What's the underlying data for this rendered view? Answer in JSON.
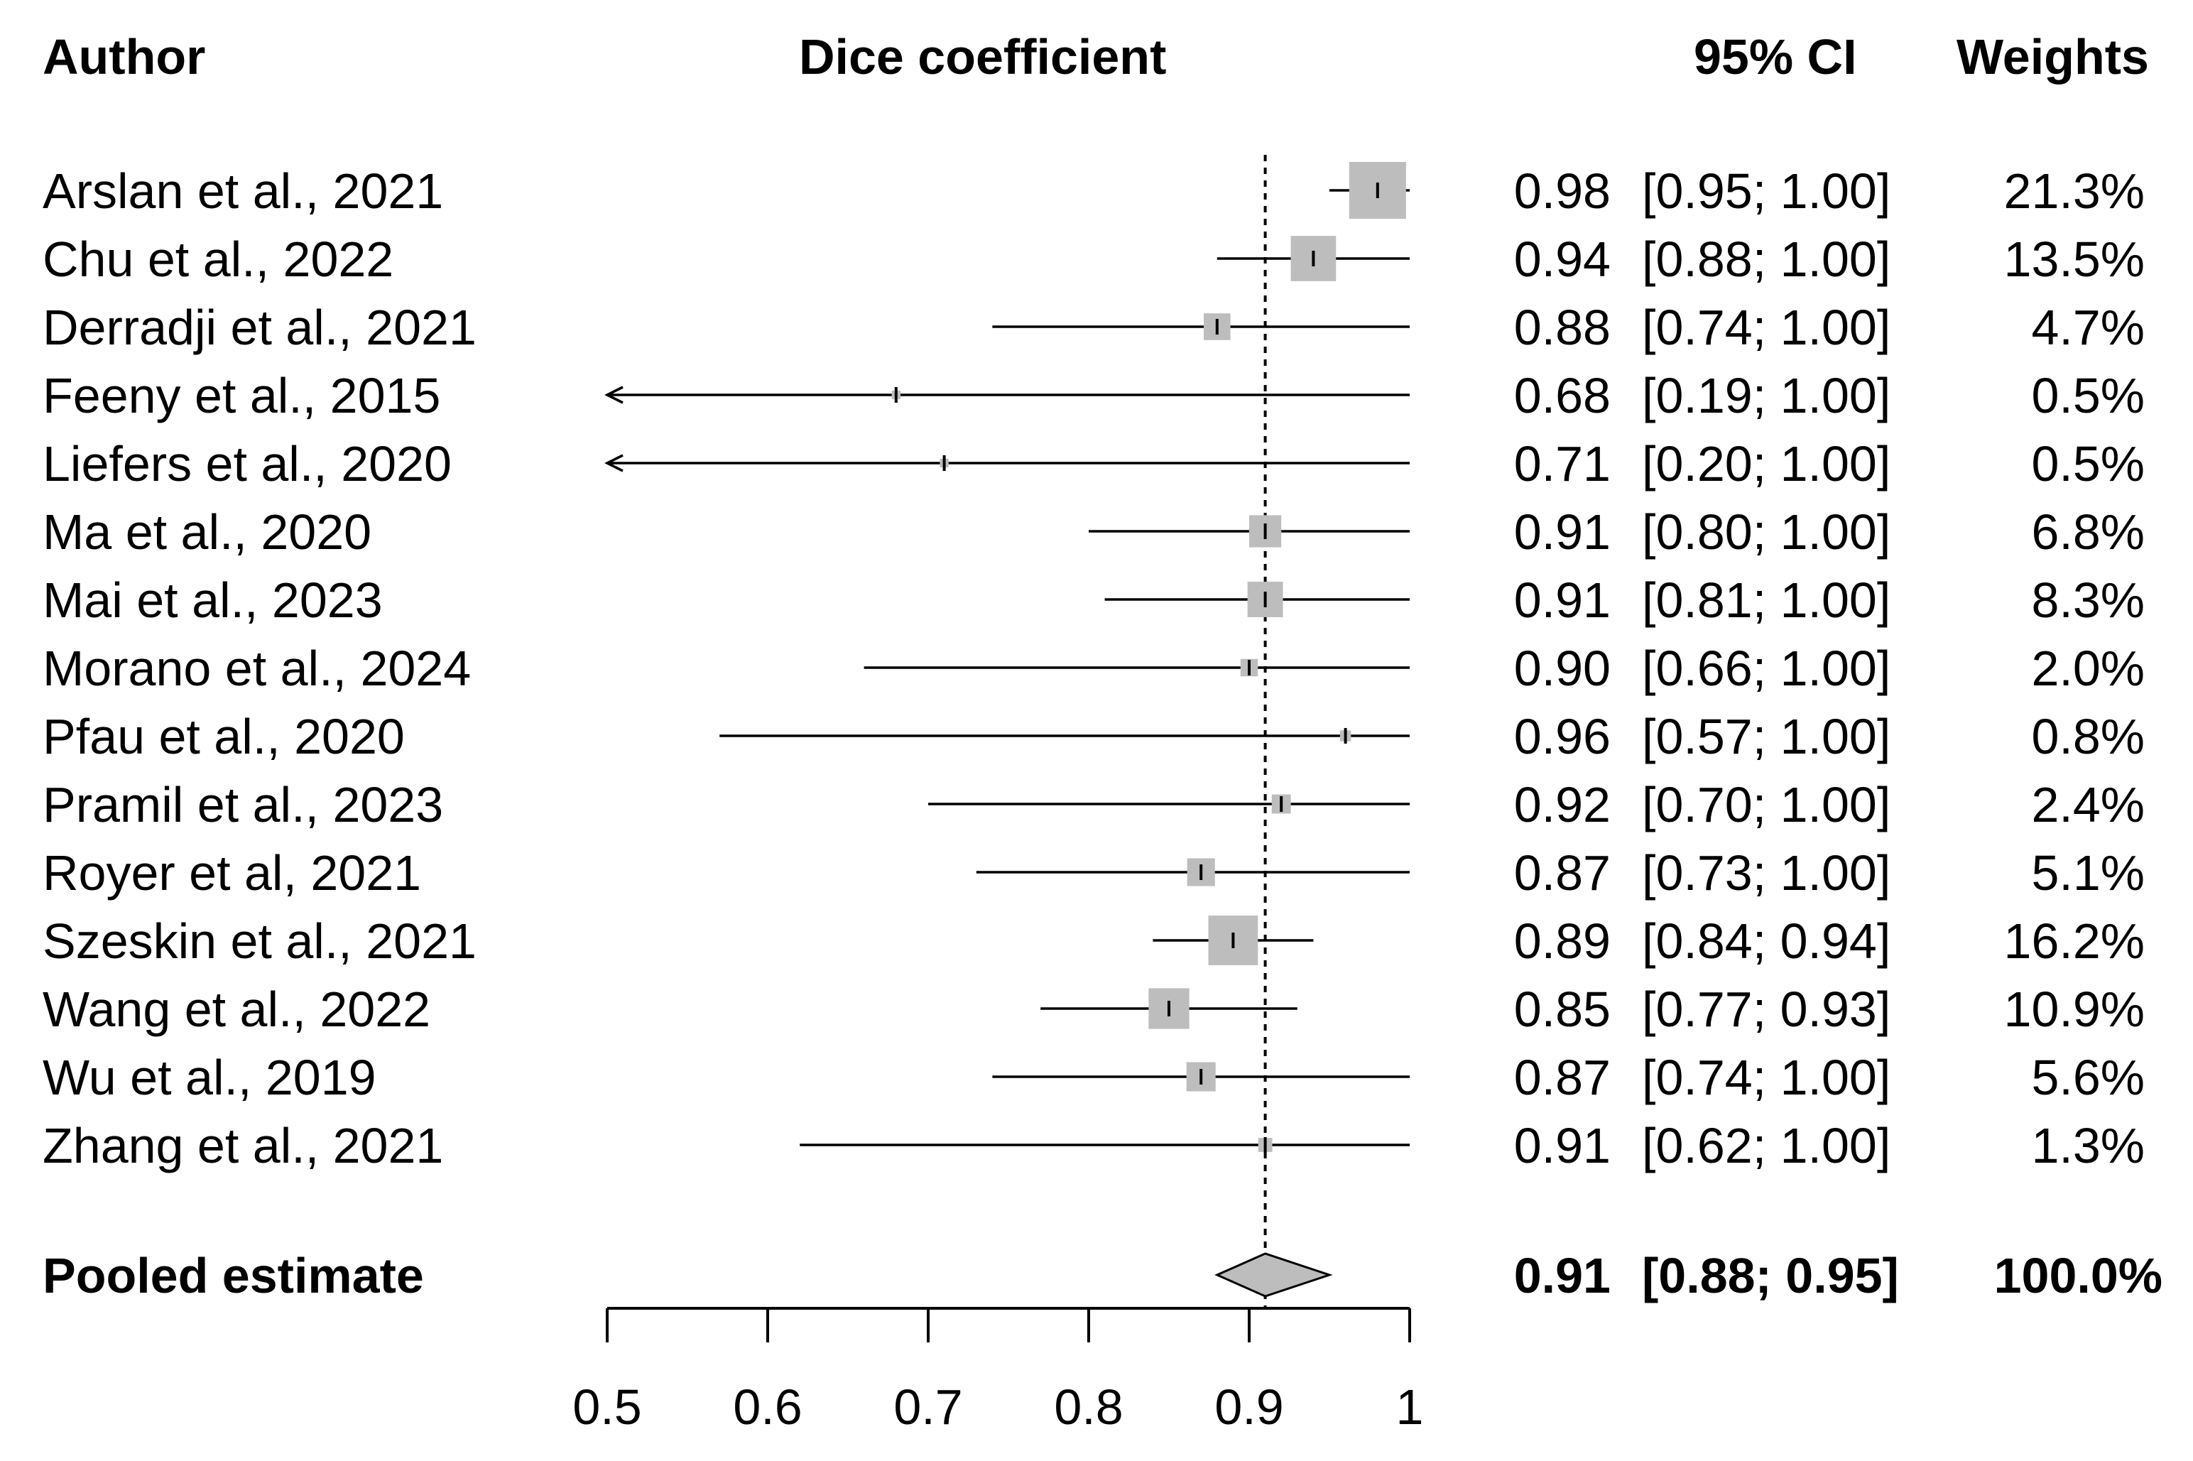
{
  "header": {
    "author": "Author",
    "metric": "Dice coefficient",
    "ci": "95% CI",
    "weights": "Weights"
  },
  "chart_data": {
    "type": "forest",
    "xlim": [
      0.5,
      1.0
    ],
    "ticks": [
      {
        "value": 0.5,
        "label": "0.5"
      },
      {
        "value": 0.6,
        "label": "0.6"
      },
      {
        "value": 0.7,
        "label": "0.7"
      },
      {
        "value": 0.8,
        "label": "0.8"
      },
      {
        "value": 0.9,
        "label": "0.9"
      },
      {
        "value": 1.0,
        "label": "1"
      }
    ],
    "reference_line": 0.91,
    "box_color": "#bdbdbd",
    "diamond_color": "#bdbdbd",
    "studies": [
      {
        "author": "Arslan et al., 2021",
        "estimate": 0.98,
        "lower": 0.95,
        "upper": 1.0,
        "weight": 21.3,
        "estimate_label": "0.98",
        "ci_label": "[0.95; 1.00]",
        "weight_label": "21.3%"
      },
      {
        "author": "Chu et al., 2022",
        "estimate": 0.94,
        "lower": 0.88,
        "upper": 1.0,
        "weight": 13.5,
        "estimate_label": "0.94",
        "ci_label": "[0.88; 1.00]",
        "weight_label": "13.5%"
      },
      {
        "author": "Derradji et al., 2021",
        "estimate": 0.88,
        "lower": 0.74,
        "upper": 1.0,
        "weight": 4.7,
        "estimate_label": "0.88",
        "ci_label": "[0.74; 1.00]",
        "weight_label": "4.7%"
      },
      {
        "author": "Feeny et al., 2015",
        "estimate": 0.68,
        "lower": 0.19,
        "upper": 1.0,
        "weight": 0.5,
        "estimate_label": "0.68",
        "ci_label": "[0.19; 1.00]",
        "weight_label": "0.5%"
      },
      {
        "author": "Liefers et al., 2020",
        "estimate": 0.71,
        "lower": 0.2,
        "upper": 1.0,
        "weight": 0.5,
        "estimate_label": "0.71",
        "ci_label": "[0.20; 1.00]",
        "weight_label": "0.5%"
      },
      {
        "author": "Ma et al., 2020",
        "estimate": 0.91,
        "lower": 0.8,
        "upper": 1.0,
        "weight": 6.8,
        "estimate_label": "0.91",
        "ci_label": "[0.80; 1.00]",
        "weight_label": "6.8%"
      },
      {
        "author": "Mai et al., 2023",
        "estimate": 0.91,
        "lower": 0.81,
        "upper": 1.0,
        "weight": 8.3,
        "estimate_label": "0.91",
        "ci_label": "[0.81; 1.00]",
        "weight_label": "8.3%"
      },
      {
        "author": "Morano et al., 2024",
        "estimate": 0.9,
        "lower": 0.66,
        "upper": 1.0,
        "weight": 2.0,
        "estimate_label": "0.90",
        "ci_label": "[0.66; 1.00]",
        "weight_label": "2.0%"
      },
      {
        "author": "Pfau et al., 2020",
        "estimate": 0.96,
        "lower": 0.57,
        "upper": 1.0,
        "weight": 0.8,
        "estimate_label": "0.96",
        "ci_label": "[0.57; 1.00]",
        "weight_label": "0.8%"
      },
      {
        "author": "Pramil et al., 2023",
        "estimate": 0.92,
        "lower": 0.7,
        "upper": 1.0,
        "weight": 2.4,
        "estimate_label": "0.92",
        "ci_label": "[0.70; 1.00]",
        "weight_label": "2.4%"
      },
      {
        "author": "Royer et al, 2021",
        "estimate": 0.87,
        "lower": 0.73,
        "upper": 1.0,
        "weight": 5.1,
        "estimate_label": "0.87",
        "ci_label": "[0.73; 1.00]",
        "weight_label": "5.1%"
      },
      {
        "author": "Szeskin et al., 2021",
        "estimate": 0.89,
        "lower": 0.84,
        "upper": 0.94,
        "weight": 16.2,
        "estimate_label": "0.89",
        "ci_label": "[0.84; 0.94]",
        "weight_label": "16.2%"
      },
      {
        "author": "Wang et al., 2022",
        "estimate": 0.85,
        "lower": 0.77,
        "upper": 0.93,
        "weight": 10.9,
        "estimate_label": "0.85",
        "ci_label": "[0.77; 0.93]",
        "weight_label": "10.9%"
      },
      {
        "author": "Wu et al., 2019",
        "estimate": 0.87,
        "lower": 0.74,
        "upper": 1.0,
        "weight": 5.6,
        "estimate_label": "0.87",
        "ci_label": "[0.74; 1.00]",
        "weight_label": "5.6%"
      },
      {
        "author": "Zhang et al., 2021",
        "estimate": 0.91,
        "lower": 0.62,
        "upper": 1.0,
        "weight": 1.3,
        "estimate_label": "0.91",
        "ci_label": "[0.62; 1.00]",
        "weight_label": "1.3%"
      }
    ],
    "pooled": {
      "author": "Pooled estimate",
      "estimate": 0.91,
      "lower": 0.88,
      "upper": 0.95,
      "weight": 100.0,
      "estimate_label": "0.91",
      "ci_label": "[0.88; 0.95]",
      "weight_label": "100.0%"
    }
  }
}
